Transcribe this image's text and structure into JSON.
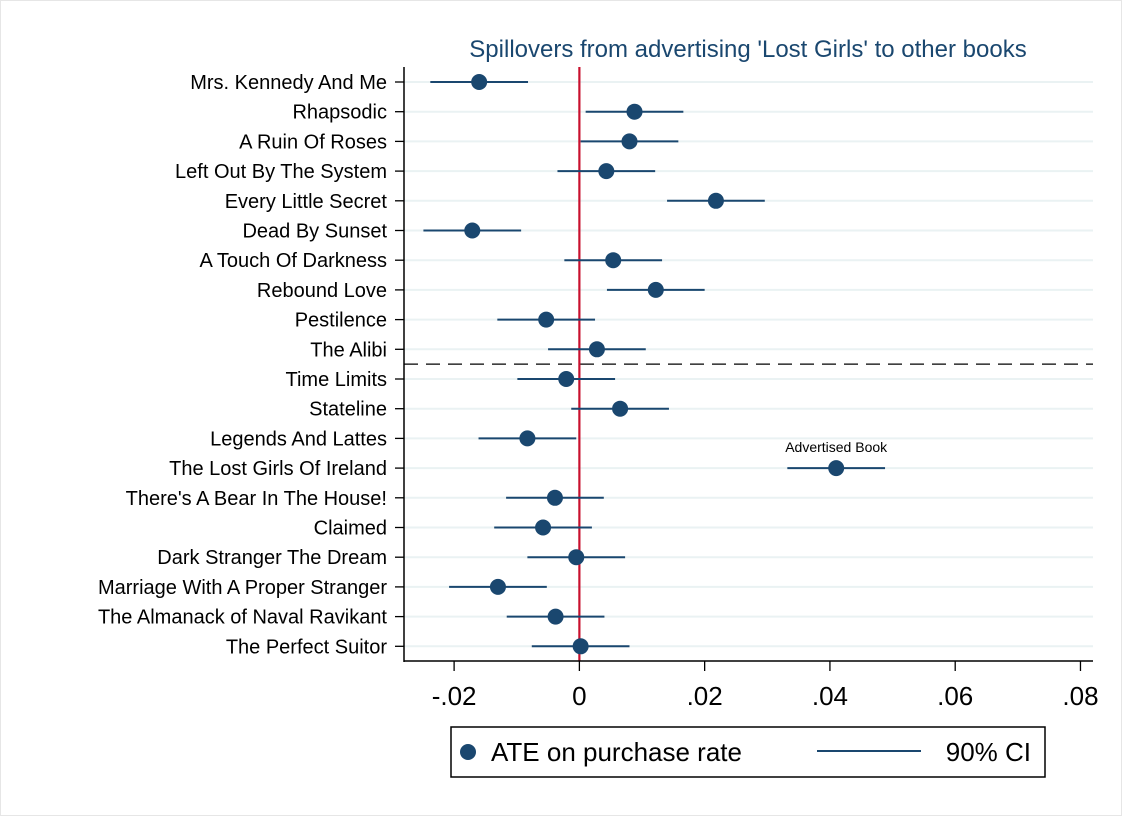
{
  "chart_data": {
    "type": "scatter",
    "title": "Spillovers from advertising 'Lost Girls' to other books",
    "xlabel": "",
    "ylabel": "",
    "xlim": [
      -0.028,
      0.082
    ],
    "xticks": [
      {
        "value": -0.02,
        "label": "-.02"
      },
      {
        "value": 0,
        "label": "0"
      },
      {
        "value": 0.02,
        "label": ".02"
      },
      {
        "value": 0.04,
        "label": ".04"
      },
      {
        "value": 0.06,
        "label": ".06"
      },
      {
        "value": 0.08,
        "label": ".08"
      }
    ],
    "grid": true,
    "reference_line": {
      "x": 0,
      "color": "#c8102e"
    },
    "divider_after_category": "The Alibi",
    "categories": [
      "Mrs. Kennedy And Me",
      "Rhapsodic",
      "A Ruin Of Roses",
      "Left Out By The System",
      "Every Little Secret",
      "Dead By Sunset",
      "A Touch Of Darkness",
      "Rebound Love",
      "Pestilence",
      "The Alibi",
      "Time Limits",
      "Stateline",
      "Legends And Lattes",
      "The Lost Girls Of Ireland",
      "There's A Bear In The House!",
      "Claimed",
      "Dark Stranger The Dream",
      "Marriage With A Proper Stranger",
      "The Almanack of Naval Ravikant",
      "The Perfect Suitor"
    ],
    "series": [
      {
        "name": "ATE on purchase rate",
        "values": [
          -0.016,
          0.0088,
          0.008,
          0.0043,
          0.0218,
          -0.0171,
          0.0054,
          0.0122,
          -0.0053,
          0.0028,
          -0.0021,
          0.0065,
          -0.0083,
          0.041,
          -0.0039,
          -0.0058,
          -0.0005,
          -0.013,
          -0.0038,
          0.0002
        ]
      },
      {
        "name": "90% CI",
        "lower": [
          -0.0238,
          0.001,
          0.0002,
          -0.0035,
          0.014,
          -0.0249,
          -0.0024,
          0.0044,
          -0.0131,
          -0.005,
          -0.0099,
          -0.0013,
          -0.0161,
          0.0332,
          -0.0117,
          -0.0136,
          -0.0083,
          -0.0208,
          -0.0116,
          -0.0076
        ],
        "upper": [
          -0.0082,
          0.0166,
          0.0158,
          0.0121,
          0.0296,
          -0.0093,
          0.0132,
          0.02,
          0.0025,
          0.0106,
          0.0057,
          0.0143,
          -0.0005,
          0.0488,
          0.0039,
          0.002,
          0.0073,
          -0.0052,
          0.004,
          0.008
        ]
      }
    ],
    "annotations": [
      {
        "text": "Advertised Book",
        "category": "The Lost Girls Of Ireland"
      }
    ],
    "legend": {
      "placement": "bottom",
      "items": [
        {
          "label": "ATE on purchase rate",
          "marker": "circle"
        },
        {
          "label": "90% CI",
          "marker": "line"
        }
      ]
    },
    "colors": {
      "series": "#1a476f",
      "reference_line": "#c8102e",
      "title": "#1a476f",
      "grid": "#eaf2f3"
    }
  }
}
